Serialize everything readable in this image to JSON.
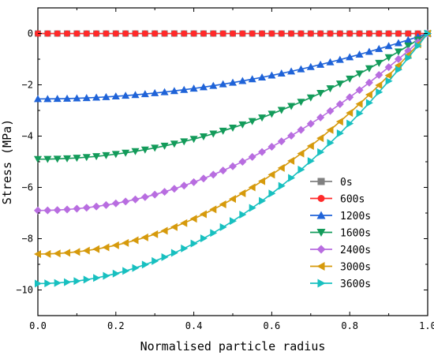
{
  "chart_data": {
    "type": "line",
    "xlabel": "Normalised particle radius",
    "ylabel": "Stress (MPa)",
    "xlim": [
      0,
      1
    ],
    "ylim": [
      -11,
      1
    ],
    "xticks": [
      0.0,
      0.2,
      0.4,
      0.6,
      0.8,
      1.0
    ],
    "xtick_labels": [
      "0.0",
      "0.2",
      "0.4",
      "0.6",
      "0.8",
      "1.0"
    ],
    "yticks": [
      0,
      -2,
      -4,
      -6,
      -8,
      -10
    ],
    "ytick_labels": [
      "0",
      "−2",
      "−4",
      "−6",
      "−8",
      "−10"
    ],
    "grid": false,
    "legend_position": "bottom-right",
    "points_per_series": 41,
    "series": [
      {
        "name": "0s",
        "color": "#808080",
        "marker": "square",
        "y0": 0
      },
      {
        "name": "600s",
        "color": "#ff2a2a",
        "marker": "circle",
        "y0": 0
      },
      {
        "name": "1200s",
        "color": "#1f63d8",
        "marker": "triangle-up",
        "y0": -2.55
      },
      {
        "name": "1600s",
        "color": "#139b5a",
        "marker": "triangle-down",
        "y0": -4.9
      },
      {
        "name": "2400s",
        "color": "#b86de0",
        "marker": "diamond",
        "y0": -6.9
      },
      {
        "name": "3000s",
        "color": "#d69a0c",
        "marker": "triangle-left",
        "y0": -8.6
      },
      {
        "name": "3600s",
        "color": "#18c0c0",
        "marker": "triangle-right",
        "y0": -9.75
      }
    ]
  }
}
